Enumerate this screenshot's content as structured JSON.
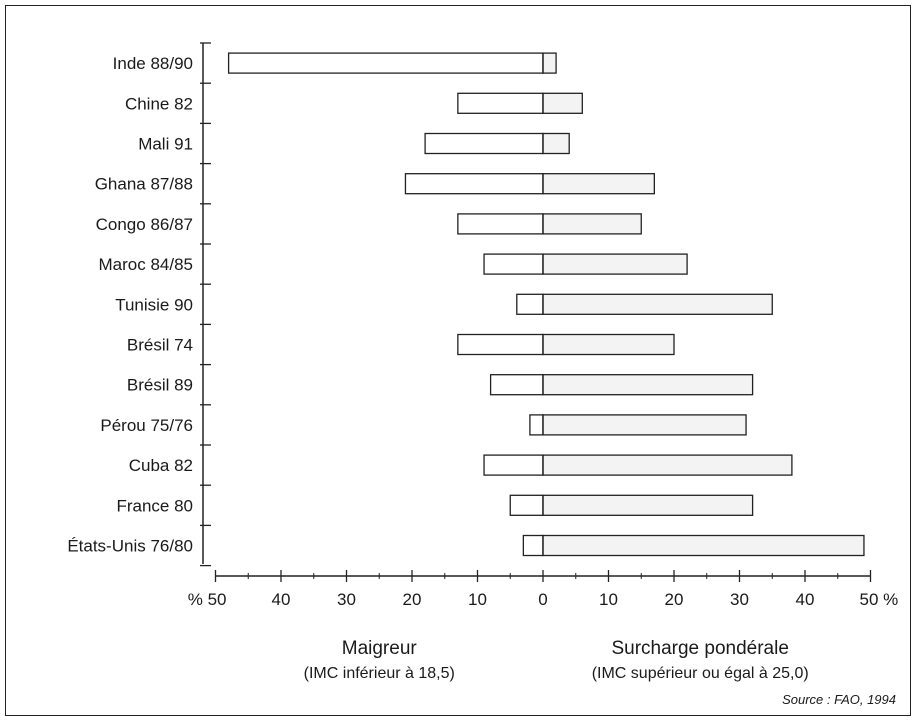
{
  "chart_data": {
    "type": "bar",
    "orientation": "horizontal-diverging",
    "categories": [
      "Inde 88/90",
      "Chine 82",
      "Mali 91",
      "Ghana 87/88",
      "Congo 86/87",
      "Maroc 84/85",
      "Tunisie 90",
      "Brésil 74",
      "Brésil 89",
      "Pérou 75/76",
      "Cuba 82",
      "France 80",
      "États-Unis 76/80"
    ],
    "series": [
      {
        "name": "Maigreur",
        "values": [
          48,
          13,
          18,
          21,
          13,
          9,
          4,
          13,
          8,
          2,
          9,
          5,
          3
        ]
      },
      {
        "name": "Surcharge pondérale",
        "values": [
          2,
          6,
          4,
          17,
          15,
          22,
          35,
          20,
          32,
          31,
          38,
          32,
          49
        ]
      }
    ],
    "xlim": [
      -50,
      50
    ],
    "x_ticks": [
      {
        "value": -50,
        "label": "% 50"
      },
      {
        "value": -40,
        "label": "40"
      },
      {
        "value": -30,
        "label": "30"
      },
      {
        "value": -20,
        "label": "20"
      },
      {
        "value": -10,
        "label": "10"
      },
      {
        "value": 0,
        "label": "0"
      },
      {
        "value": 10,
        "label": "10"
      },
      {
        "value": 20,
        "label": "20"
      },
      {
        "value": 30,
        "label": "30"
      },
      {
        "value": 40,
        "label": "40"
      },
      {
        "value": 50,
        "label": "50 %"
      }
    ],
    "left_title": "Maigreur",
    "left_subtitle": "(IMC inférieur à 18,5)",
    "right_title": "Surcharge pondérale",
    "right_subtitle": "(IMC supérieur ou égal à 25,0)",
    "grid": false,
    "colors": {
      "bar_fill": "#ffffff",
      "right_bar_fill": "#f3f3f3",
      "stroke": "#222222"
    }
  },
  "source": "Source : FAO, 1994"
}
